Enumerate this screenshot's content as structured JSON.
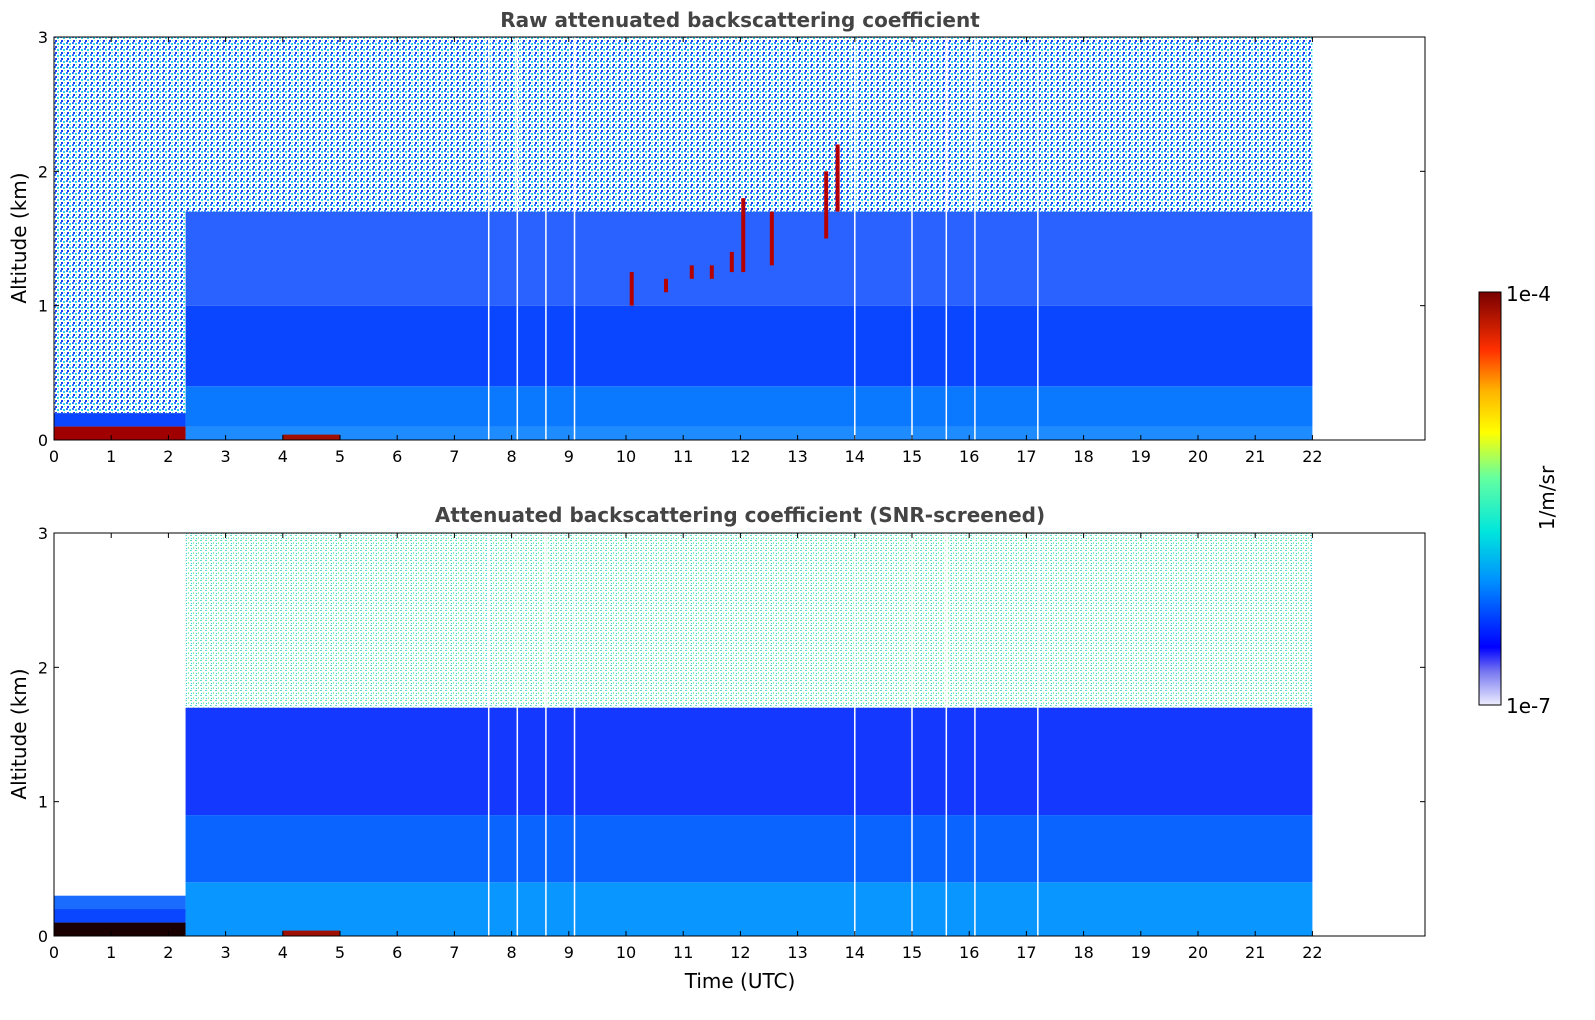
{
  "chart_data": [
    {
      "type": "heatmap",
      "title": "Raw attenuated backscattering coefficient",
      "xlabel": "",
      "ylabel": "Altitude (km)",
      "xlim": [
        0,
        24
      ],
      "ylim": [
        0,
        3
      ],
      "xticks": [
        "0",
        "1",
        "2",
        "3",
        "4",
        "5",
        "6",
        "7",
        "8",
        "9",
        "10",
        "11",
        "12",
        "13",
        "14",
        "15",
        "16",
        "17",
        "18",
        "19",
        "20",
        "21",
        "22"
      ],
      "yticks": [
        "0",
        "1",
        "2",
        "3"
      ],
      "data_extent_hours": [
        0,
        22
      ],
      "grid": false,
      "description_features": {
        "surface_layer_top_km": 0.1,
        "boundary_layer_top_km": 1.0,
        "clouds": [
          {
            "time_h": 10.1,
            "alt_km": [
              1.0,
              1.25
            ]
          },
          {
            "time_h": 10.7,
            "alt_km": [
              1.1,
              1.2
            ]
          },
          {
            "time_h": 11.15,
            "alt_km": [
              1.2,
              1.3
            ]
          },
          {
            "time_h": 11.5,
            "alt_km": [
              1.2,
              1.3
            ]
          },
          {
            "time_h": 11.85,
            "alt_km": [
              1.25,
              1.4
            ]
          },
          {
            "time_h": 12.05,
            "alt_km": [
              1.25,
              1.8
            ]
          },
          {
            "time_h": 12.55,
            "alt_km": [
              1.3,
              1.7
            ]
          },
          {
            "time_h": 13.5,
            "alt_km": [
              1.5,
              2.0
            ]
          },
          {
            "time_h": 13.7,
            "alt_km": [
              1.7,
              2.2
            ]
          }
        ]
      }
    },
    {
      "type": "heatmap",
      "title": "Attenuated backscattering coefficient (SNR-screened)",
      "xlabel": "Time (UTC)",
      "ylabel": "Altitude (km)",
      "xlim": [
        0,
        24
      ],
      "ylim": [
        0,
        3
      ],
      "xticks": [
        "0",
        "1",
        "2",
        "3",
        "4",
        "5",
        "6",
        "7",
        "8",
        "9",
        "10",
        "11",
        "12",
        "13",
        "14",
        "15",
        "16",
        "17",
        "18",
        "19",
        "20",
        "21",
        "22"
      ],
      "yticks": [
        "0",
        "1",
        "2",
        "3"
      ],
      "data_extent_hours": [
        0,
        22
      ],
      "grid": false
    }
  ],
  "colorbar": {
    "label": "1/m/sr",
    "max_label": "1e-4",
    "min_label": "1e-7",
    "colormap": [
      "#eeeeff",
      "#b4b4f6",
      "#7878f0",
      "#0000ff",
      "#005aff",
      "#00b4ff",
      "#00e6dc",
      "#64ffa0",
      "#c8ff50",
      "#ffff00",
      "#ffb400",
      "#ff5000",
      "#dc0000",
      "#780000"
    ]
  }
}
